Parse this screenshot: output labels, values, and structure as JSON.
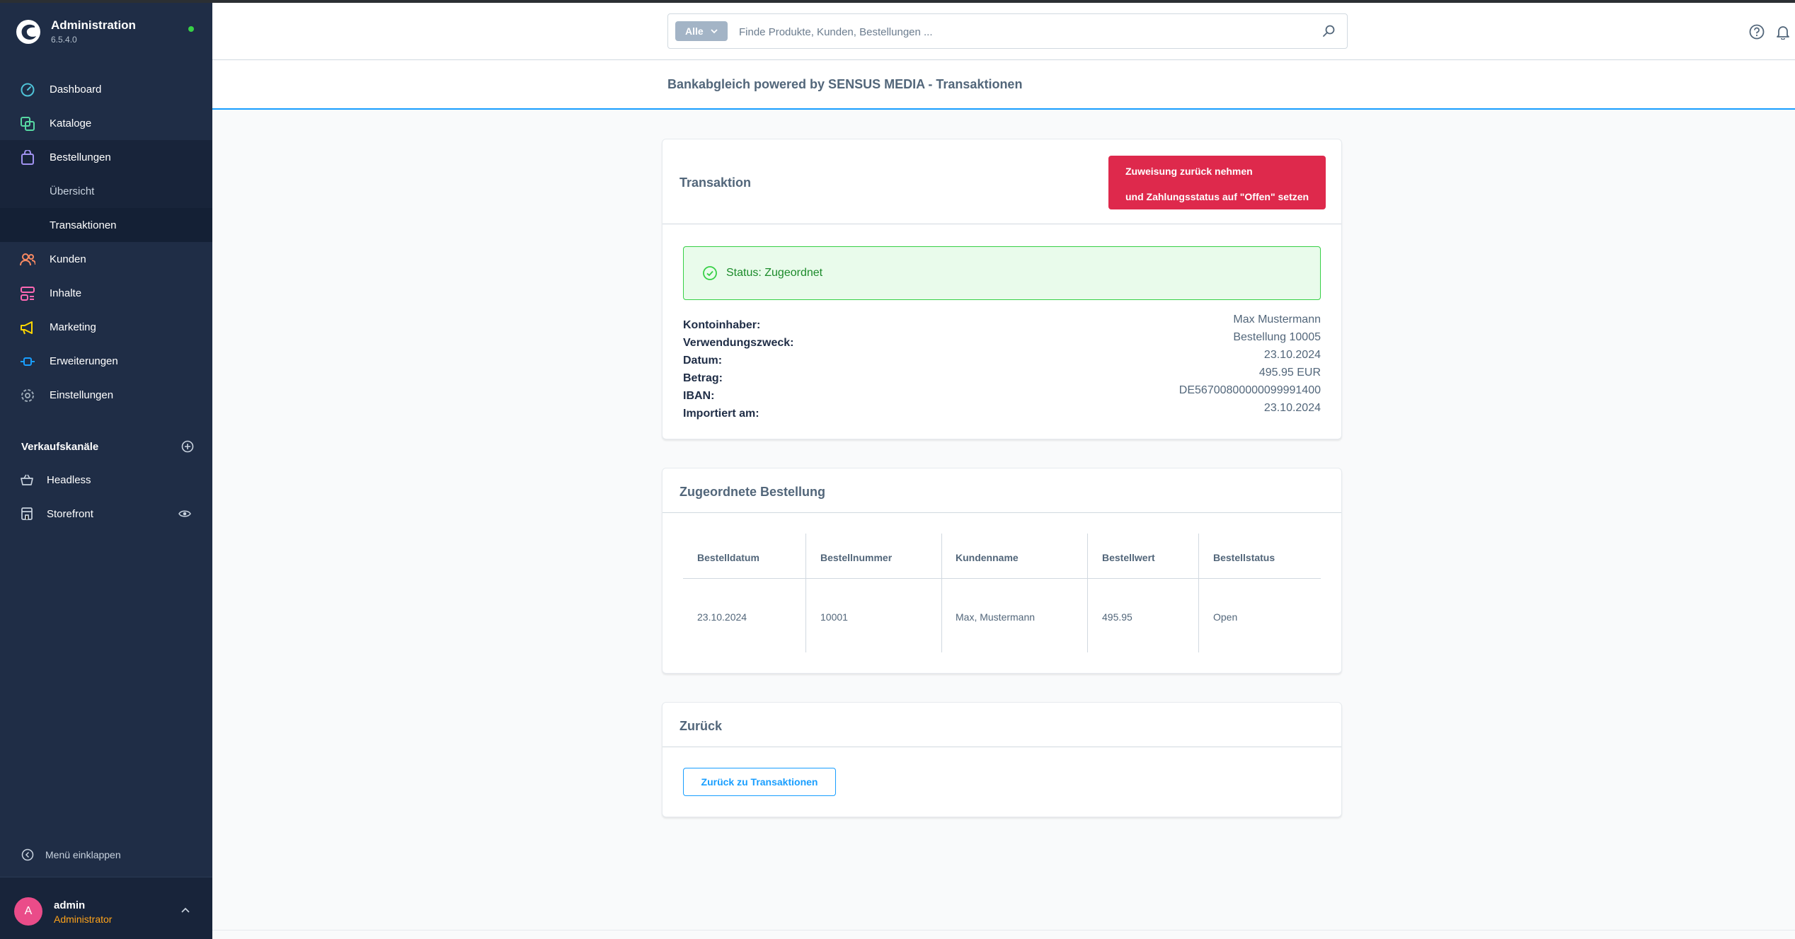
{
  "app": {
    "title": "Administration",
    "version": "6.5.4.0"
  },
  "sidebar": {
    "items": [
      {
        "label": "Dashboard",
        "icon": "dashboard-icon",
        "color": "#4fc3d8"
      },
      {
        "label": "Kataloge",
        "icon": "catalog-icon",
        "color": "#57d9a3"
      },
      {
        "label": "Bestellungen",
        "icon": "shopping-bag-icon",
        "color": "#a092f0"
      },
      {
        "label": "Kunden",
        "icon": "customer-icon",
        "color": "#f88962"
      },
      {
        "label": "Inhalte",
        "icon": "content-icon",
        "color": "#ff68b4"
      },
      {
        "label": "Marketing",
        "icon": "megaphone-icon",
        "color": "#ffd700"
      },
      {
        "label": "Erweiterungen",
        "icon": "plug-icon",
        "color": "#189eff"
      },
      {
        "label": "Einstellungen",
        "icon": "gear-icon",
        "color": "#9aa8b5"
      }
    ],
    "sub_items": [
      {
        "label": "Übersicht"
      },
      {
        "label": "Transaktionen"
      }
    ],
    "channels_heading": "Verkaufskanäle",
    "channels": [
      {
        "label": "Headless"
      },
      {
        "label": "Storefront"
      }
    ],
    "collapse_label": "Menü einklappen",
    "user": {
      "initial": "A",
      "name": "admin",
      "role": "Administrator"
    }
  },
  "search": {
    "type_label": "Alle",
    "placeholder": "Finde Produkte, Kunden, Bestellungen ..."
  },
  "page_title": "Bankabgleich powered by SENSUS MEDIA - Transaktionen",
  "transaction": {
    "title": "Transaktion",
    "unassign_line1": "Zuweisung zurück nehmen",
    "unassign_line2": "und Zahlungsstatus auf \"Offen\" setzen",
    "status": "Status: Zugeordnet",
    "fields": [
      {
        "label": "Kontoinhaber:",
        "value": "Max Mustermann"
      },
      {
        "label": "Verwendungszweck:",
        "value": "Bestellung 10005"
      },
      {
        "label": "Datum:",
        "value": "23.10.2024"
      },
      {
        "label": "Betrag:",
        "value": "495.95 EUR"
      },
      {
        "label": "IBAN:",
        "value": "DE56700800000099991400"
      },
      {
        "label": "Importiert am:",
        "value": "23.10.2024"
      }
    ]
  },
  "order": {
    "title": "Zugeordnete Bestellung",
    "columns": [
      "Bestelldatum",
      "Bestellnummer",
      "Kundenname",
      "Bestellwert",
      "Bestellstatus"
    ],
    "row": [
      "23.10.2024",
      "10001",
      "Max, Mustermann",
      "495.95",
      "Open"
    ]
  },
  "back": {
    "title": "Zurück",
    "button_label": "Zurück zu Transaktionen"
  },
  "colors": {
    "sidebar_bg": "#1f2d46",
    "accent": "#189eff",
    "danger": "#de294c",
    "success": "#37d046"
  }
}
